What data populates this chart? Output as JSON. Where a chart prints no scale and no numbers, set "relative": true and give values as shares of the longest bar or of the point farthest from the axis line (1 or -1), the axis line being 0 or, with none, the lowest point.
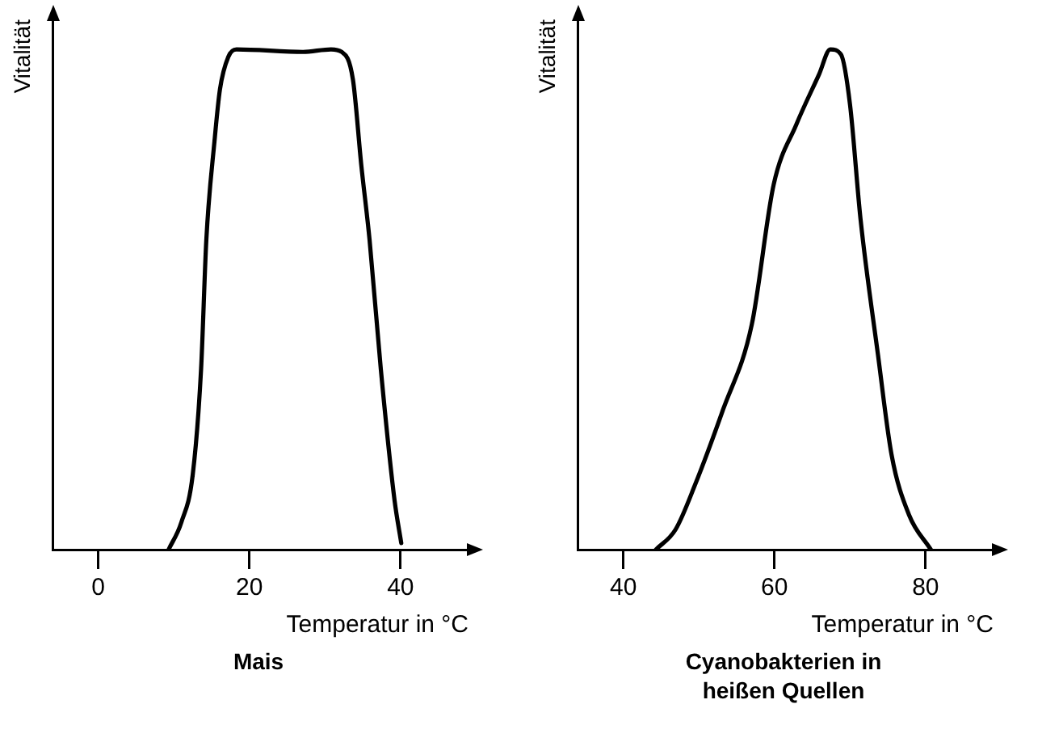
{
  "chart_data": [
    {
      "type": "line",
      "title": "Mais",
      "xlabel": "Temperatur in °C",
      "ylabel": "Vitalität",
      "relative": true,
      "xlim": [
        -6,
        49
      ],
      "xticks": [
        0,
        20,
        40
      ],
      "marker": "none",
      "series": [
        {
          "color": "#000000",
          "x": [
            9.3,
            11.0,
            12.5,
            13.6,
            14.3,
            15.4,
            16.1,
            17.2,
            18.3,
            27.1,
            30.8,
            32.2,
            33.7,
            34.8,
            35.9,
            37.4,
            39.2,
            40.1
          ],
          "values": [
            0,
            0.055,
            0.15,
            0.36,
            0.62,
            0.82,
            0.92,
            0.985,
            1,
            0.995,
            1,
            0.995,
            0.94,
            0.77,
            0.62,
            0.36,
            0.1,
            0.013
          ]
        }
      ]
    },
    {
      "type": "line",
      "title": "Cyanobakterien in heißen Quellen",
      "xlabel": "Temperatur in °C",
      "ylabel": "Vitalität",
      "relative": true,
      "xlim": [
        34,
        89
      ],
      "xticks": [
        40,
        60,
        80
      ],
      "marker": "none",
      "series": [
        {
          "color": "#000000",
          "x": [
            44.3,
            46.9,
            49.5,
            53.2,
            57.0,
            59.9,
            62.9,
            65.9,
            67.4,
            68.8,
            70.0,
            71.4,
            73.7,
            75.5,
            77.8,
            80.7
          ],
          "values": [
            0,
            0.04,
            0.13,
            0.28,
            0.45,
            0.73,
            0.85,
            0.95,
            1,
            0.99,
            0.89,
            0.66,
            0.39,
            0.19,
            0.07,
            0
          ]
        }
      ]
    }
  ]
}
